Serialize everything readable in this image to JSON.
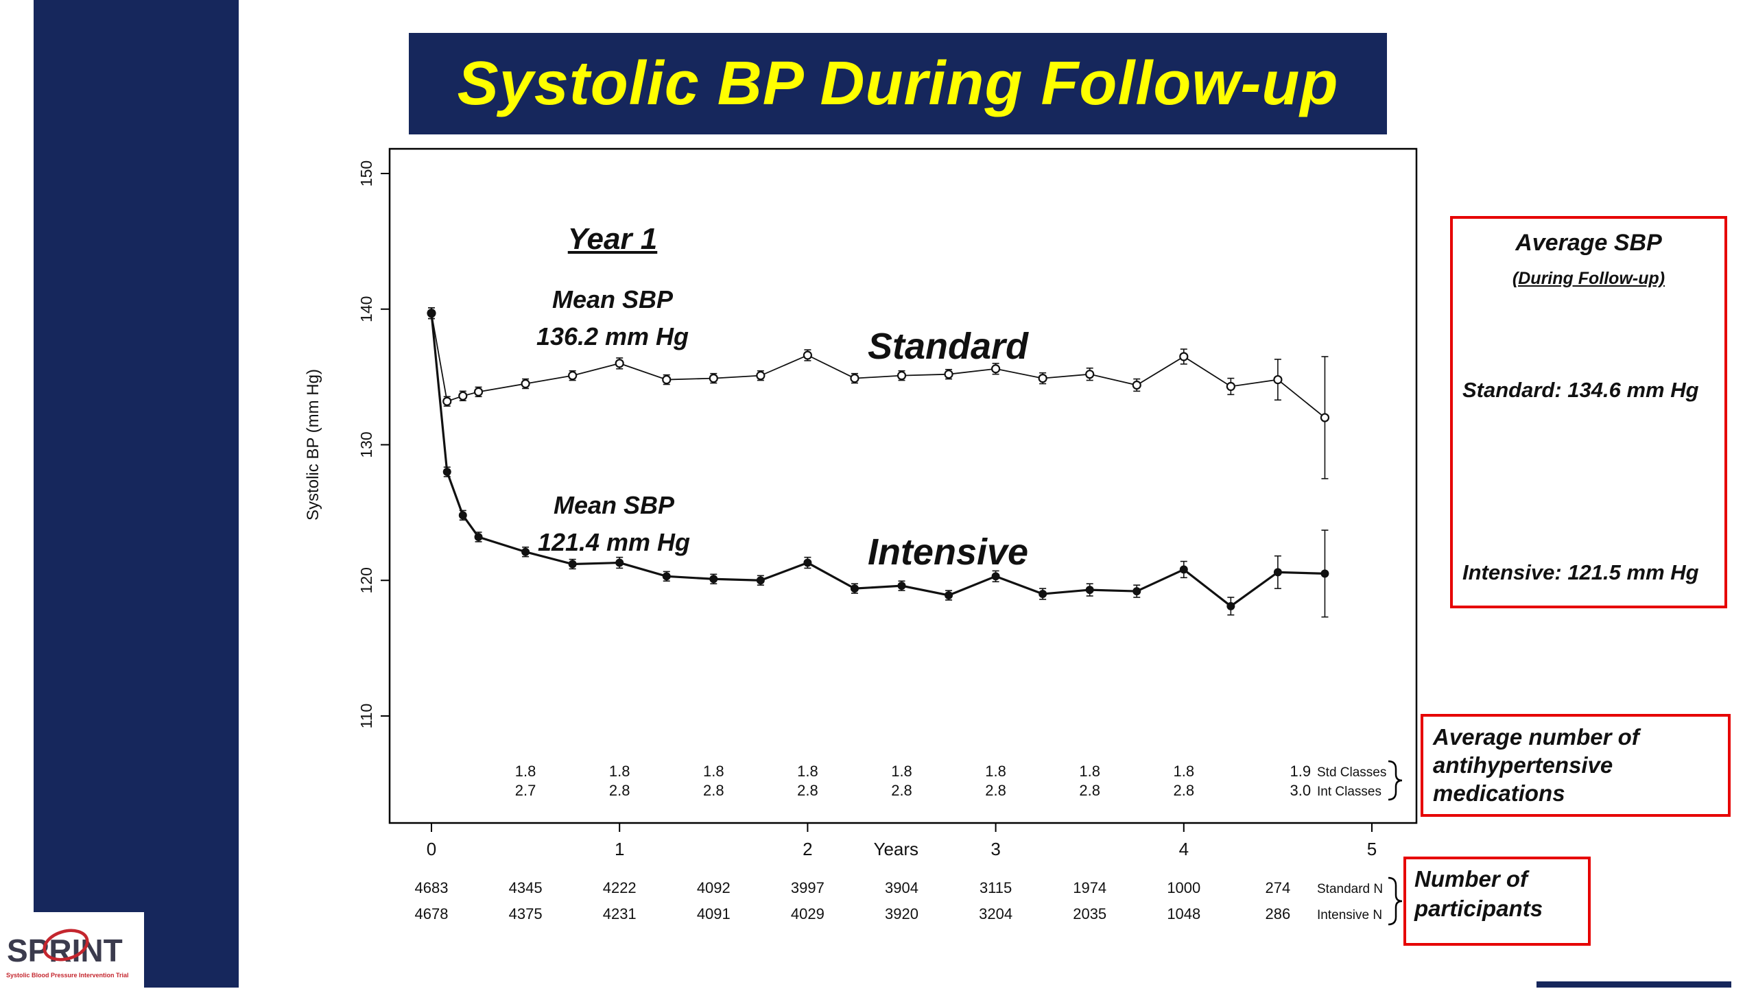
{
  "palette": {
    "navy": "#16275c",
    "red": "#e60000",
    "yellow": "#ffff00",
    "ink": "#111111"
  },
  "title": {
    "text": "Systolic BP During Follow-up"
  },
  "logo": {
    "text": "SPRINT",
    "subtext": "Systolic Blood Pressure Intervention Trial"
  },
  "chart_data": {
    "type": "line",
    "title": "",
    "xlabel": "Years",
    "ylabel": "Systolic BP (mm Hg)",
    "xlim": [
      -0.15,
      5.35
    ],
    "ylim": [
      104,
      152
    ],
    "x_ticks": [
      0,
      1,
      2,
      3,
      4,
      5
    ],
    "y_ticks": [
      110,
      120,
      130,
      140,
      150
    ],
    "grid": false,
    "x": [
      0,
      0.083,
      0.167,
      0.25,
      0.5,
      0.75,
      1,
      1.25,
      1.5,
      1.75,
      2,
      2.25,
      2.5,
      2.75,
      3,
      3.25,
      3.5,
      3.75,
      4,
      4.25,
      4.5,
      4.75
    ],
    "series": [
      {
        "name": "Standard",
        "marker": "open-circle",
        "line_width": 1.8,
        "values": [
          139.7,
          133.2,
          133.6,
          133.9,
          134.5,
          135.1,
          136.0,
          134.8,
          134.9,
          135.1,
          136.6,
          134.9,
          135.1,
          135.2,
          135.6,
          134.9,
          135.2,
          134.4,
          136.5,
          134.3,
          134.8,
          132.0
        ],
        "errors": [
          0.4,
          0.35,
          0.35,
          0.35,
          0.35,
          0.35,
          0.4,
          0.35,
          0.35,
          0.35,
          0.4,
          0.35,
          0.35,
          0.35,
          0.4,
          0.4,
          0.45,
          0.45,
          0.55,
          0.6,
          1.5,
          4.5
        ]
      },
      {
        "name": "Intensive",
        "marker": "filled-circle",
        "line_width": 3.2,
        "values": [
          139.7,
          128.0,
          124.8,
          123.2,
          122.1,
          121.2,
          121.3,
          120.3,
          120.1,
          120.0,
          121.3,
          119.4,
          119.6,
          118.9,
          120.3,
          119.0,
          119.3,
          119.2,
          120.8,
          118.1,
          120.6,
          120.5
        ],
        "errors": [
          0.4,
          0.35,
          0.35,
          0.35,
          0.35,
          0.35,
          0.4,
          0.35,
          0.35,
          0.35,
          0.4,
          0.35,
          0.35,
          0.35,
          0.4,
          0.4,
          0.45,
          0.45,
          0.6,
          0.65,
          1.2,
          3.2
        ]
      }
    ],
    "annotations": {
      "year1": "Year 1",
      "std_mean_line1": "Mean SBP",
      "std_mean_line2": "136.2 mm Hg",
      "standard_label": "Standard",
      "int_mean_line1": "Mean SBP",
      "int_mean_line2": "121.4 mm Hg",
      "intensive_label": "Intensive"
    },
    "med_classes": {
      "x": [
        0.5,
        1,
        1.5,
        2,
        2.5,
        3,
        3.5,
        4,
        4.62
      ],
      "std": [
        "1.8",
        "1.8",
        "1.8",
        "1.8",
        "1.8",
        "1.8",
        "1.8",
        "1.8",
        "1.9"
      ],
      "int": [
        "2.7",
        "2.8",
        "2.8",
        "2.8",
        "2.8",
        "2.8",
        "2.8",
        "2.8",
        "3.0"
      ],
      "std_label": "Std Classes",
      "int_label": "Int Classes"
    },
    "participants": {
      "x": [
        0,
        0.5,
        1,
        1.5,
        2,
        2.5,
        3,
        3.5,
        4,
        4.5
      ],
      "standard": [
        "4683",
        "4345",
        "4222",
        "4092",
        "3997",
        "3904",
        "3115",
        "1974",
        "1000",
        "274"
      ],
      "intensive": [
        "4678",
        "4375",
        "4231",
        "4091",
        "4029",
        "3920",
        "3204",
        "2035",
        "1048",
        "286"
      ],
      "standard_label": "Standard N",
      "intensive_label": "Intensive N"
    }
  },
  "callouts": {
    "avg_sbp": {
      "title": "Average SBP",
      "subtitle": "(During Follow-up)",
      "standard": "Standard: 134.6 mm Hg",
      "intensive": "Intensive: 121.5 mm Hg"
    },
    "med_box": {
      "lines": [
        "Average number of",
        "antihypertensive",
        "medications"
      ]
    },
    "n_box": {
      "lines": [
        "Number of",
        "participants"
      ]
    }
  }
}
